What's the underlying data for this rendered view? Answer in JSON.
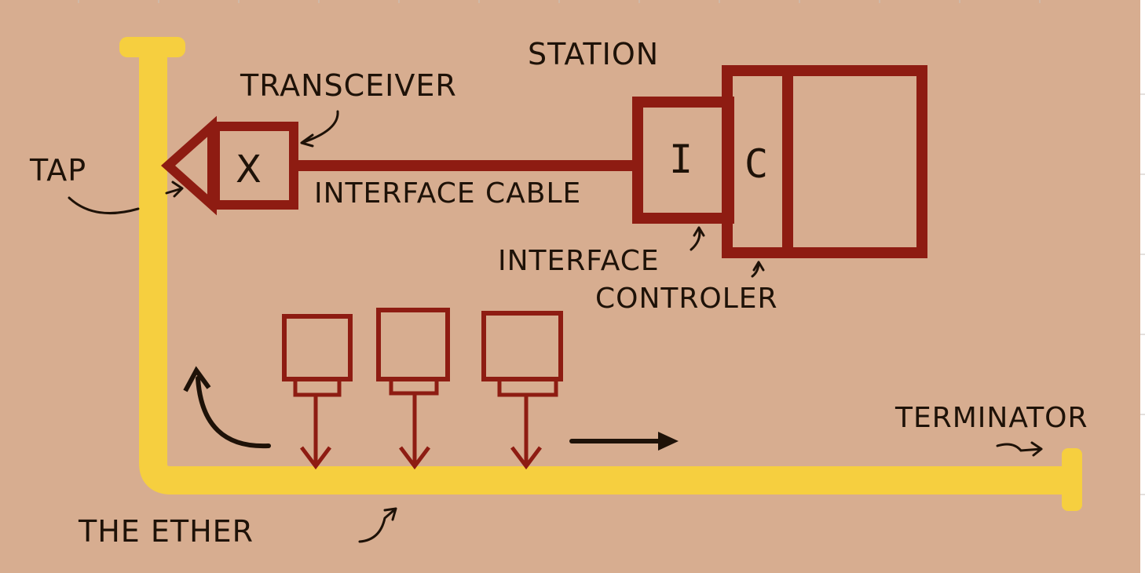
{
  "colors": {
    "background": "#d7ad90",
    "ether": "#f6cf3f",
    "hardware": "#8e1c12",
    "ink": "#1e1208",
    "border_right": "#ffffff",
    "tick": "#c9c2bb"
  },
  "labels": {
    "station": "STATION",
    "transceiver": "TRANSCEIVER",
    "tap": "TAP",
    "interface_cable": "INTERFACE  CABLE",
    "interface": "INTERFACE",
    "controller": "CONTROLER",
    "terminator": "TERMINATOR",
    "the_ether": "THE  ETHER",
    "transceiver_mark": "X",
    "interface_box": "I",
    "controller_box": "C"
  },
  "icons": {
    "packet_boxes": [
      "packet-box-icon",
      "packet-box-icon",
      "packet-box-icon"
    ],
    "flow_arrows": [
      "arrow-up-left-icon",
      "arrow-right-icon"
    ]
  }
}
